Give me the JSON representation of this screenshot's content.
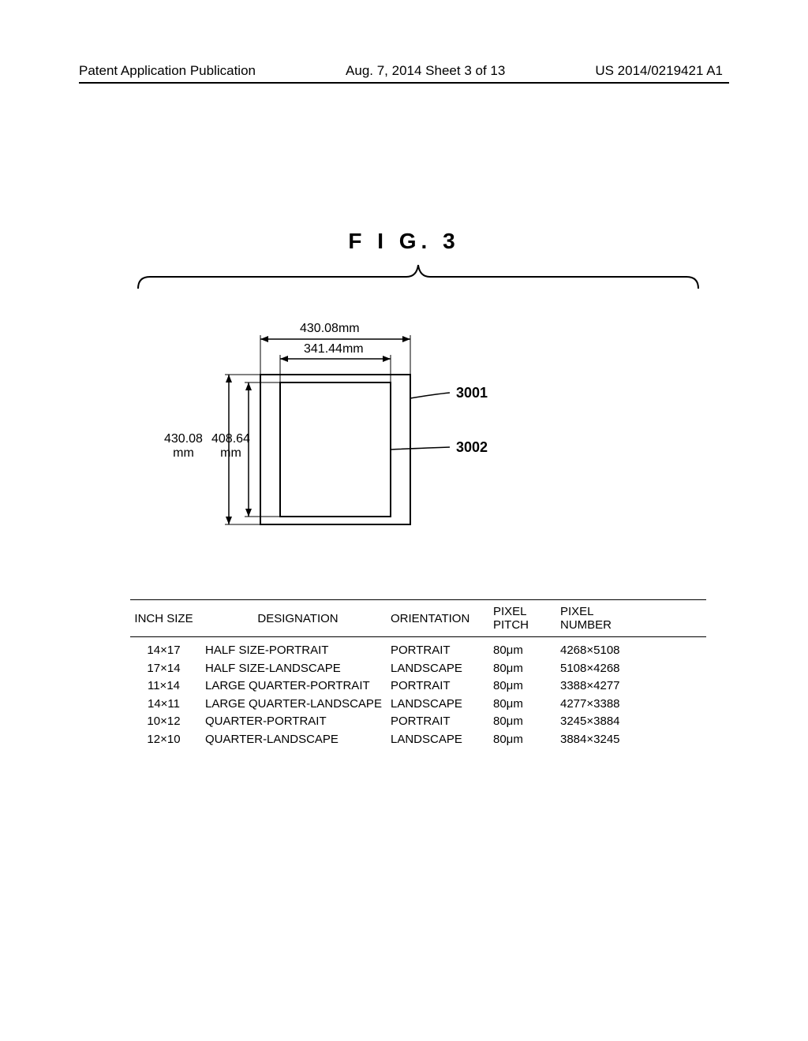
{
  "header": {
    "left": "Patent Application Publication",
    "center": "Aug. 7, 2014  Sheet 3 of 13",
    "right": "US 2014/0219421 A1"
  },
  "figure_title": "F I G.  3",
  "diagram": {
    "outer_width_label": "430.08mm",
    "inner_width_label": "341.44mm",
    "outer_height_label_a": "430.08",
    "outer_height_label_b": "mm",
    "inner_height_label_a": "408.64",
    "inner_height_label_b": "mm",
    "ref1": "3001",
    "ref2": "3002"
  },
  "table": {
    "headers": {
      "inch": "INCH SIZE",
      "desig": "DESIGNATION",
      "orient": "ORIENTATION",
      "pitch_a": "PIXEL",
      "pitch_b": "PITCH",
      "pixnum_a": "PIXEL",
      "pixnum_b": "NUMBER"
    },
    "rows": [
      {
        "inch": "14×17",
        "desig": "HALF SIZE-PORTRAIT",
        "orient": "PORTRAIT",
        "pitch": "80μm",
        "pixnum": "4268×5108"
      },
      {
        "inch": "17×14",
        "desig": "HALF SIZE-LANDSCAPE",
        "orient": "LANDSCAPE",
        "pitch": "80μm",
        "pixnum": "5108×4268"
      },
      {
        "inch": "11×14",
        "desig": "LARGE QUARTER-PORTRAIT",
        "orient": "PORTRAIT",
        "pitch": "80μm",
        "pixnum": "3388×4277"
      },
      {
        "inch": "14×11",
        "desig": "LARGE QUARTER-LANDSCAPE",
        "orient": "LANDSCAPE",
        "pitch": "80μm",
        "pixnum": "4277×3388"
      },
      {
        "inch": "10×12",
        "desig": "QUARTER-PORTRAIT",
        "orient": "PORTRAIT",
        "pitch": "80μm",
        "pixnum": "3245×3884"
      },
      {
        "inch": "12×10",
        "desig": "QUARTER-LANDSCAPE",
        "orient": "LANDSCAPE",
        "pitch": "80μm",
        "pixnum": "3884×3245"
      }
    ]
  }
}
